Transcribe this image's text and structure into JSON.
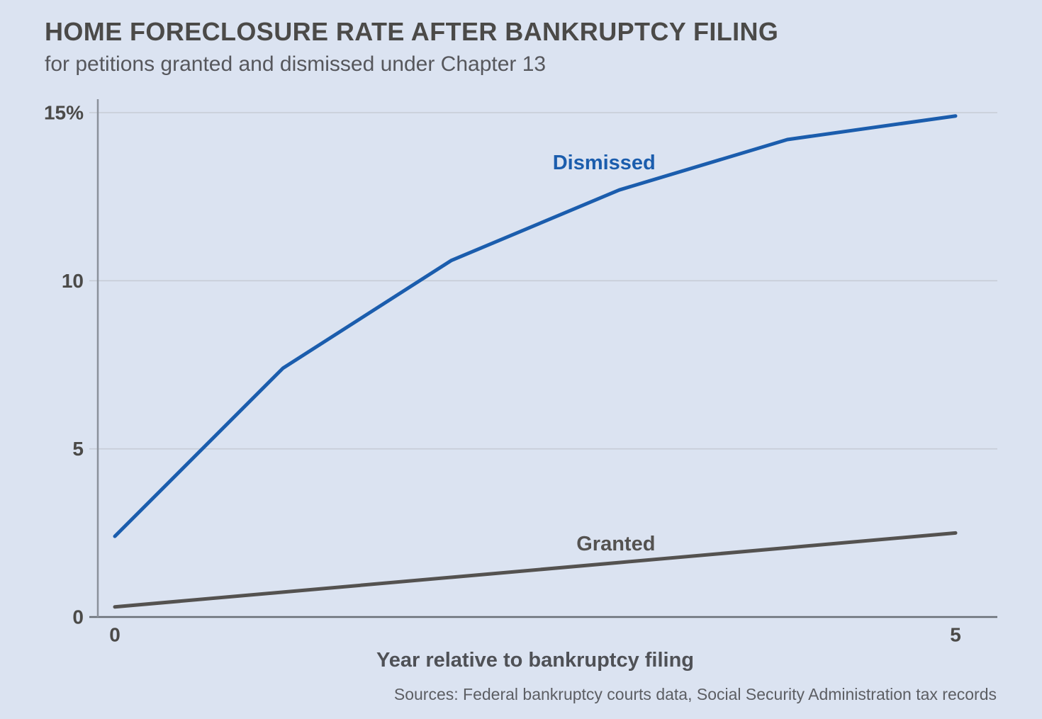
{
  "header": {
    "title": "HOME FORECLOSURE RATE AFTER BANKRUPTCY FILING",
    "subtitle": "for petitions granted and dismissed under Chapter 13"
  },
  "chart_data": {
    "type": "line",
    "x": [
      0,
      1,
      2,
      3,
      4,
      5
    ],
    "series": [
      {
        "name": "Dismissed",
        "values": [
          2.4,
          7.4,
          10.6,
          12.7,
          14.2,
          14.9
        ],
        "color": "#1b5dad",
        "label_at": {
          "x": 2.91,
          "y": 13.5
        }
      },
      {
        "name": "Granted",
        "values": [
          0.3,
          0.74,
          1.18,
          1.62,
          2.06,
          2.5
        ],
        "color": "#545250",
        "label_at": {
          "x": 2.98,
          "y": 2.17
        }
      }
    ],
    "xlabel": "Year relative to bankruptcy filing",
    "ylabel": "",
    "xlim": [
      0,
      5
    ],
    "ylim": [
      0,
      15
    ],
    "xticks": [
      {
        "value": 0,
        "label": "0"
      },
      {
        "value": 5,
        "label": "5"
      }
    ],
    "yticks": [
      {
        "value": 0,
        "label": "0"
      },
      {
        "value": 5,
        "label": "5"
      },
      {
        "value": 10,
        "label": "10"
      },
      {
        "value": 15,
        "label": "15%"
      }
    ],
    "grid": true,
    "legend_position": "inline-labels"
  },
  "source": "Sources: Federal bankruptcy courts data, Social Security Administration tax records",
  "colors": {
    "background": "#dbe3f1",
    "grid": "#c7ccd6",
    "axis": "#8b919b",
    "axis_strong": "#696e76",
    "text": "#4b4a48",
    "accent_blue": "#1b5dad",
    "accent_dark": "#545250"
  }
}
